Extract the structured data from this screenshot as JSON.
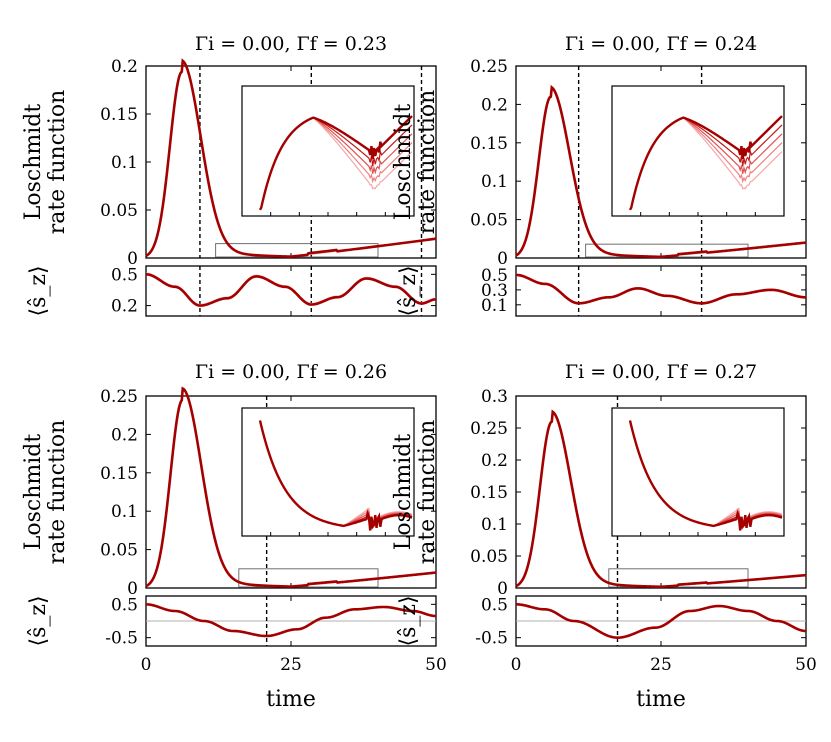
{
  "figure": {
    "xlabel": "time",
    "ylabel_line1": "Loschmidt",
    "ylabel_line2": "rate function",
    "sz_label": "⟨ŝ_z⟩"
  },
  "colors": {
    "dark_curve": "#a50000",
    "light_curve": "#f4a7a7",
    "mid_curve": "#e05050",
    "dashed": "#000000",
    "zero_line": "#b0b0b0",
    "box": "#707070"
  },
  "chart_data": [
    {
      "type": "line",
      "title": "Γi = 0.00, Γf = 0.23",
      "xlim": [
        0,
        50
      ],
      "ylim": [
        0,
        0.2
      ],
      "yticks": [
        "0",
        "0.05",
        "0.1",
        "0.15",
        "0.2"
      ],
      "ytick_values": [
        0,
        0.05,
        0.1,
        0.15,
        0.2
      ],
      "peak": {
        "t": 6.2,
        "value": 0.194
      },
      "dashed_times": [
        9.3,
        28.5,
        47.5
      ],
      "sz": {
        "yticks": [
          "0.5",
          "0.2"
        ],
        "ytick_values": [
          0.5,
          0.2
        ],
        "ylim": [
          0.1,
          0.58
        ],
        "values_t": [
          0,
          5,
          9.3,
          14,
          19,
          24,
          28.5,
          33,
          38,
          43,
          47.5,
          50
        ],
        "values": [
          0.5,
          0.38,
          0.2,
          0.27,
          0.48,
          0.38,
          0.21,
          0.28,
          0.46,
          0.38,
          0.22,
          0.26
        ]
      },
      "inset": {
        "box_t": [
          12,
          40
        ],
        "box_y": [
          0,
          0.015
        ]
      }
    },
    {
      "type": "line",
      "title": "Γi = 0.00, Γf = 0.24",
      "xlim": [
        0,
        50
      ],
      "ylim": [
        0,
        0.25
      ],
      "yticks": [
        "0",
        "0.05",
        "0.1",
        "0.15",
        "0.2",
        "0.25"
      ],
      "ytick_values": [
        0,
        0.05,
        0.1,
        0.15,
        0.2,
        0.25
      ],
      "peak": {
        "t": 6.0,
        "value": 0.21
      },
      "dashed_times": [
        10.8,
        32.0
      ],
      "sz": {
        "yticks": [
          "0.5",
          "0.3",
          "0.1"
        ],
        "ytick_values": [
          0.5,
          0.3,
          0.1
        ],
        "ylim": [
          -0.05,
          0.62
        ],
        "values_t": [
          0,
          5,
          10.8,
          16,
          21,
          26,
          32,
          38,
          44,
          50
        ],
        "values": [
          0.5,
          0.38,
          0.12,
          0.2,
          0.32,
          0.22,
          0.12,
          0.24,
          0.3,
          0.2
        ]
      },
      "inset": {
        "box_t": [
          12,
          40
        ],
        "box_y": [
          0,
          0.018
        ]
      }
    },
    {
      "type": "line",
      "title": "Γi = 0.00, Γf = 0.26",
      "xlim": [
        0,
        50
      ],
      "ylim": [
        0,
        0.25
      ],
      "yticks": [
        "0",
        "0.05",
        "0.1",
        "0.15",
        "0.2",
        "0.25"
      ],
      "ytick_values": [
        0,
        0.05,
        0.1,
        0.15,
        0.2,
        0.25
      ],
      "peak": {
        "t": 6.3,
        "value": 0.245
      },
      "dashed_times": [
        20.8
      ],
      "sz": {
        "yticks": [
          "0.5",
          "-0.5"
        ],
        "ytick_values": [
          0.5,
          -0.5
        ],
        "ylim": [
          -0.75,
          0.75
        ],
        "zero_line": true,
        "values_t": [
          0,
          5,
          10,
          15,
          20.8,
          26,
          31,
          36,
          41,
          46,
          50
        ],
        "values": [
          0.5,
          0.3,
          0.0,
          -0.3,
          -0.45,
          -0.25,
          0.1,
          0.35,
          0.42,
          0.3,
          0.15
        ]
      },
      "inset": {
        "box_t": [
          16,
          40
        ],
        "box_y": [
          0,
          0.025
        ]
      }
    },
    {
      "type": "line",
      "title": "Γi = 0.00, Γf = 0.27",
      "xlim": [
        0,
        50
      ],
      "ylim": [
        0,
        0.3
      ],
      "yticks": [
        "0",
        "0.05",
        "0.1",
        "0.15",
        "0.2",
        "0.25",
        "0.3"
      ],
      "ytick_values": [
        0,
        0.05,
        0.1,
        0.15,
        0.2,
        0.25,
        0.3
      ],
      "peak": {
        "t": 6.2,
        "value": 0.26
      },
      "dashed_times": [
        17.5
      ],
      "sz": {
        "yticks": [
          "0.5",
          "-0.5"
        ],
        "ytick_values": [
          0.5,
          -0.5
        ],
        "ylim": [
          -0.75,
          0.75
        ],
        "zero_line": true,
        "values_t": [
          0,
          5,
          10,
          17.5,
          24,
          30,
          35,
          40,
          45,
          50
        ],
        "values": [
          0.5,
          0.35,
          0.0,
          -0.5,
          -0.2,
          0.3,
          0.45,
          0.3,
          0.0,
          -0.3
        ]
      },
      "inset": {
        "box_t": [
          16,
          40
        ],
        "box_y": [
          0,
          0.03
        ]
      }
    }
  ],
  "xticks": [
    "0",
    "25",
    "50"
  ],
  "xtick_values": [
    0,
    25,
    50
  ]
}
